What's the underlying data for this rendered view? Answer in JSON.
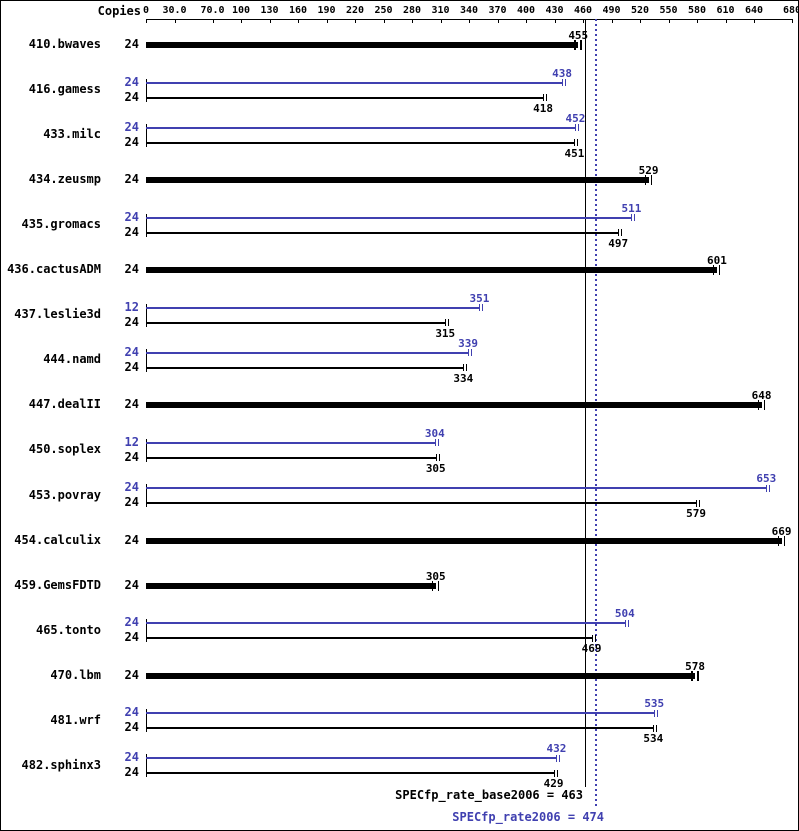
{
  "chart_data": {
    "type": "bar",
    "orientation": "horizontal",
    "title": "",
    "copies_header": "Copies",
    "colors": {
      "base": "#000000",
      "peak": "#4040b0"
    },
    "x_axis": {
      "min": 0,
      "max": 680,
      "ticks": [
        {
          "value": 0,
          "label": "0"
        },
        {
          "value": 30,
          "label": "30.0"
        },
        {
          "value": 70,
          "label": "70.0"
        },
        {
          "value": 100,
          "label": "100"
        },
        {
          "value": 130,
          "label": "130"
        },
        {
          "value": 160,
          "label": "160"
        },
        {
          "value": 190,
          "label": "190"
        },
        {
          "value": 220,
          "label": "220"
        },
        {
          "value": 250,
          "label": "250"
        },
        {
          "value": 280,
          "label": "280"
        },
        {
          "value": 310,
          "label": "310"
        },
        {
          "value": 340,
          "label": "340"
        },
        {
          "value": 370,
          "label": "370"
        },
        {
          "value": 400,
          "label": "400"
        },
        {
          "value": 430,
          "label": "430"
        },
        {
          "value": 460,
          "label": "460"
        },
        {
          "value": 490,
          "label": "490"
        },
        {
          "value": 520,
          "label": "520"
        },
        {
          "value": 550,
          "label": "550"
        },
        {
          "value": 580,
          "label": "580"
        },
        {
          "value": 610,
          "label": "610"
        },
        {
          "value": 640,
          "label": "640"
        },
        {
          "value": 680,
          "label": "680"
        }
      ]
    },
    "benchmarks": [
      {
        "name": "410.bwaves",
        "bars": [
          {
            "type": "base",
            "copies": "24",
            "value": 455,
            "thick": true
          }
        ]
      },
      {
        "name": "416.gamess",
        "bars": [
          {
            "type": "peak",
            "copies": "24",
            "value": 438
          },
          {
            "type": "base",
            "copies": "24",
            "value": 418
          }
        ]
      },
      {
        "name": "433.milc",
        "bars": [
          {
            "type": "peak",
            "copies": "24",
            "value": 452
          },
          {
            "type": "base",
            "copies": "24",
            "value": 451
          }
        ]
      },
      {
        "name": "434.zeusmp",
        "bars": [
          {
            "type": "base",
            "copies": "24",
            "value": 529,
            "thick": true
          }
        ]
      },
      {
        "name": "435.gromacs",
        "bars": [
          {
            "type": "peak",
            "copies": "24",
            "value": 511
          },
          {
            "type": "base",
            "copies": "24",
            "value": 497
          }
        ]
      },
      {
        "name": "436.cactusADM",
        "bars": [
          {
            "type": "base",
            "copies": "24",
            "value": 601,
            "thick": true
          }
        ]
      },
      {
        "name": "437.leslie3d",
        "bars": [
          {
            "type": "peak",
            "copies": "12",
            "value": 351
          },
          {
            "type": "base",
            "copies": "24",
            "value": 315
          }
        ]
      },
      {
        "name": "444.namd",
        "bars": [
          {
            "type": "peak",
            "copies": "24",
            "value": 339
          },
          {
            "type": "base",
            "copies": "24",
            "value": 334
          }
        ]
      },
      {
        "name": "447.dealII",
        "bars": [
          {
            "type": "base",
            "copies": "24",
            "value": 648,
            "thick": true
          }
        ]
      },
      {
        "name": "450.soplex",
        "bars": [
          {
            "type": "peak",
            "copies": "12",
            "value": 304
          },
          {
            "type": "base",
            "copies": "24",
            "value": 305
          }
        ]
      },
      {
        "name": "453.povray",
        "bars": [
          {
            "type": "peak",
            "copies": "24",
            "value": 653
          },
          {
            "type": "base",
            "copies": "24",
            "value": 579
          }
        ]
      },
      {
        "name": "454.calculix",
        "bars": [
          {
            "type": "base",
            "copies": "24",
            "value": 669,
            "thick": true
          }
        ]
      },
      {
        "name": "459.GemsFDTD",
        "bars": [
          {
            "type": "base",
            "copies": "24",
            "value": 305,
            "thick": true
          }
        ]
      },
      {
        "name": "465.tonto",
        "bars": [
          {
            "type": "peak",
            "copies": "24",
            "value": 504
          },
          {
            "type": "base",
            "copies": "24",
            "value": 469
          }
        ]
      },
      {
        "name": "470.lbm",
        "bars": [
          {
            "type": "base",
            "copies": "24",
            "value": 578,
            "thick": true
          }
        ]
      },
      {
        "name": "481.wrf",
        "bars": [
          {
            "type": "peak",
            "copies": "24",
            "value": 535
          },
          {
            "type": "base",
            "copies": "24",
            "value": 534
          }
        ]
      },
      {
        "name": "482.sphinx3",
        "bars": [
          {
            "type": "peak",
            "copies": "24",
            "value": 432
          },
          {
            "type": "base",
            "copies": "24",
            "value": 429
          }
        ]
      }
    ],
    "reference_lines": [
      {
        "kind": "base",
        "value": 463,
        "style": "solid",
        "color": "#000000"
      },
      {
        "kind": "peak",
        "value": 474,
        "style": "dotted",
        "color": "#4040b0"
      }
    ],
    "summary": {
      "base_text": "SPECfp_rate_base2006 = 463",
      "base_value": 463,
      "peak_text": "SPECfp_rate2006 = 474",
      "peak_value": 474
    }
  }
}
